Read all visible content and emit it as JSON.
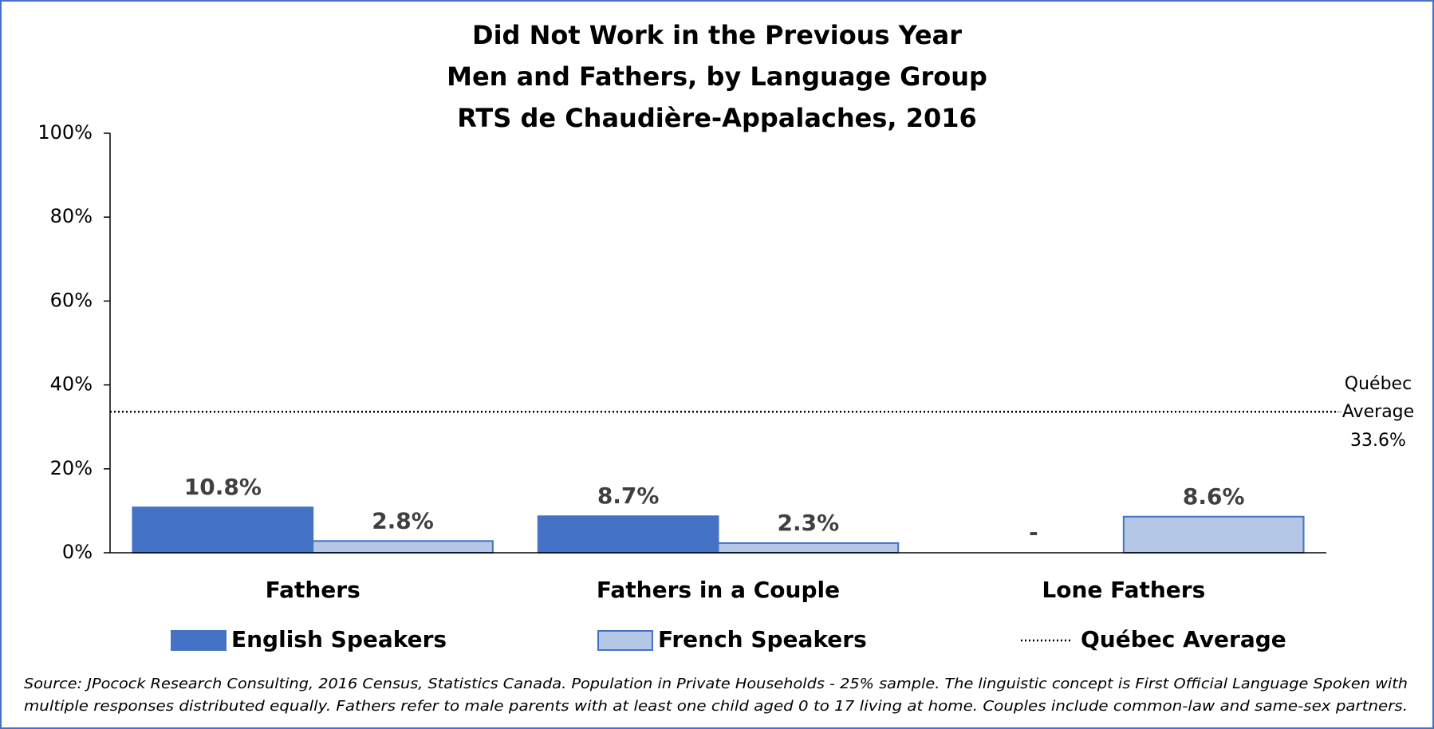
{
  "chart_data": {
    "type": "bar",
    "title": [
      "Did Not Work in the Previous Year",
      "Men and Fathers, by Language Group",
      "RTS de Chaudière-Appalaches, 2016"
    ],
    "categories": [
      "Fathers",
      "Fathers in a Couple",
      "Lone Fathers"
    ],
    "series": [
      {
        "name": "English Speakers",
        "color": "#4472c4",
        "values": [
          10.8,
          8.7,
          null
        ],
        "value_labels": [
          "10.8%",
          "8.7%",
          "-"
        ]
      },
      {
        "name": "French Speakers",
        "color": "#b4c7e7",
        "values": [
          2.8,
          2.3,
          8.6
        ],
        "value_labels": [
          "2.8%",
          "2.3%",
          "8.6%"
        ]
      }
    ],
    "reference_line": {
      "name": "Québec Average",
      "value": 33.6,
      "annotation": [
        "Québec",
        "Average"
      ],
      "value_label": "33.6%"
    },
    "ylim": [
      0,
      100
    ],
    "yticks": [
      {
        "value": 0,
        "label": "0%"
      },
      {
        "value": 20,
        "label": "20%"
      },
      {
        "value": 40,
        "label": "40%"
      },
      {
        "value": 60,
        "label": "60%"
      },
      {
        "value": 80,
        "label": "80%"
      },
      {
        "value": 100,
        "label": "100%"
      }
    ],
    "legend": "bottom",
    "source": [
      "Source: JPocock Research Consulting, 2016 Census, Statistics Canada. Population in Private Households - 25% sample. The linguistic concept is First Official Language Spoken with",
      "multiple responses distributed equally. Fathers refer to male parents with at least one child aged 0 to 17 living at home. Couples include common-law and same-sex partners."
    ]
  }
}
